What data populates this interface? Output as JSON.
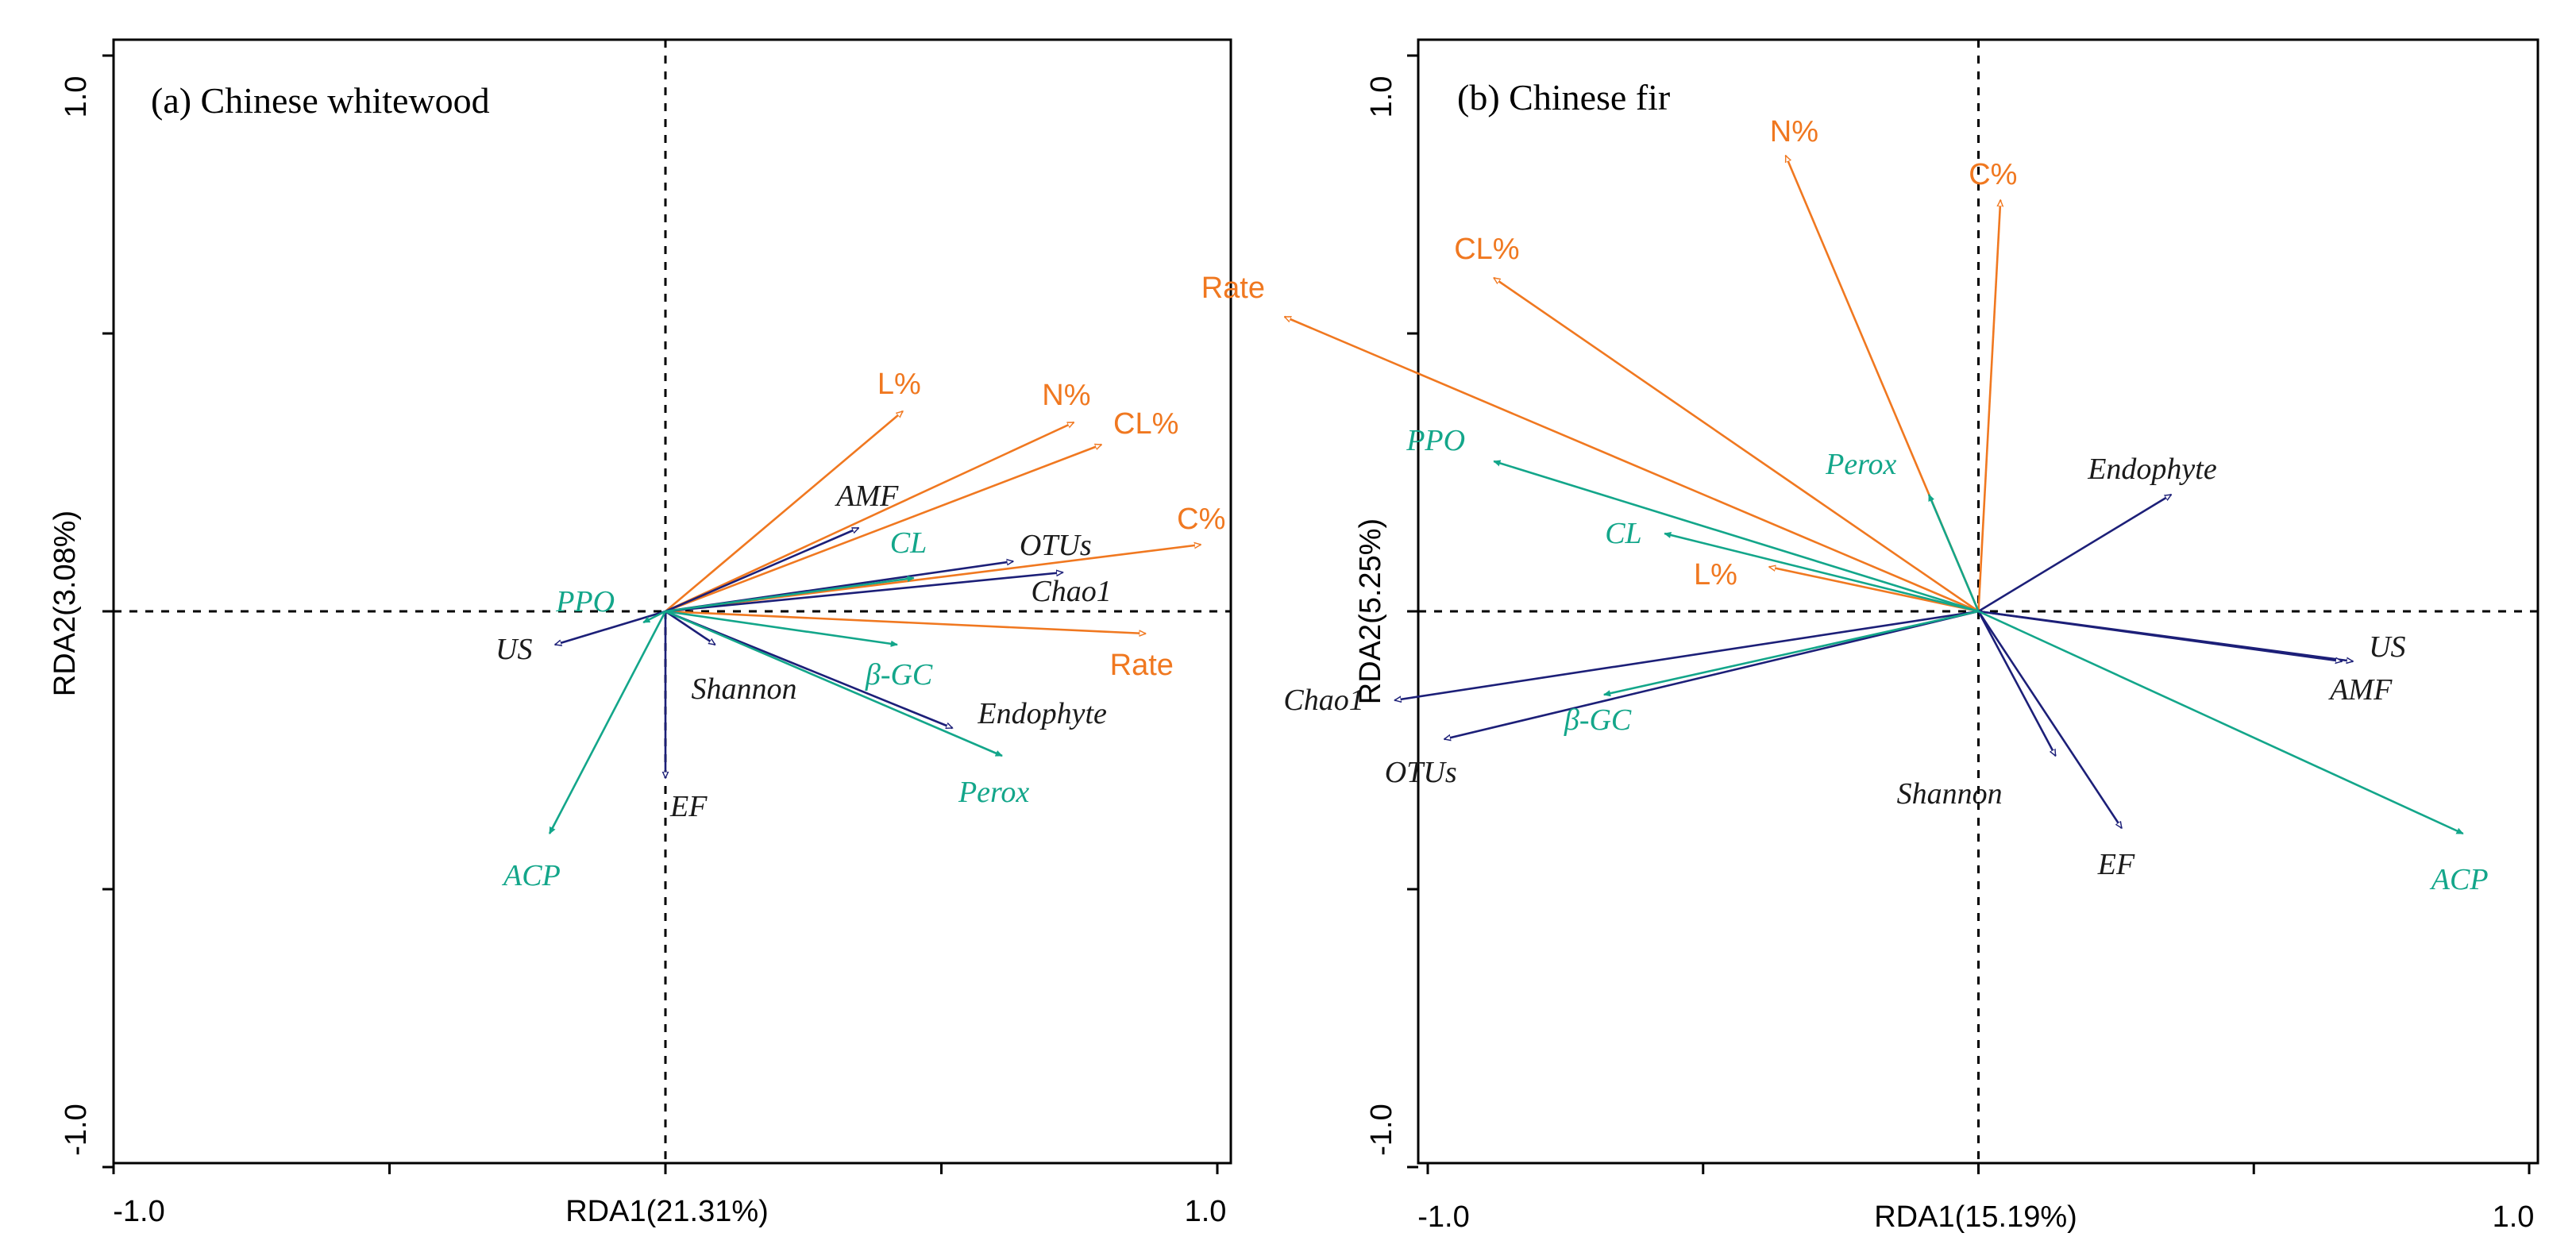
{
  "colors": {
    "orange": "#f07820",
    "green": "#13a68a",
    "navy": "#1c1f78",
    "frame": "#000000"
  },
  "chart_data": [
    {
      "type": "scatter",
      "subtype": "rda-biplot",
      "title": "(a) Chinese whitewood",
      "xlabel": "RDA1(21.31%)",
      "ylabel": "RDA2(3.08%)",
      "xlim": [
        -1.0,
        1.0
      ],
      "ylim": [
        -1.0,
        1.0
      ],
      "xticks": [
        "-1.0",
        "1.0"
      ],
      "yticks": [
        "1.0",
        "-1.0"
      ],
      "zero_lines": "dashed",
      "vectors": [
        {
          "label": "L%",
          "x": 0.43,
          "y": 0.36,
          "group": "litter",
          "head": "open"
        },
        {
          "label": "N%",
          "x": 0.74,
          "y": 0.34,
          "group": "litter",
          "head": "open"
        },
        {
          "label": "CL%",
          "x": 0.79,
          "y": 0.3,
          "group": "litter",
          "head": "open"
        },
        {
          "label": "C%",
          "x": 0.97,
          "y": 0.12,
          "group": "litter",
          "head": "open"
        },
        {
          "label": "Rate",
          "x": 0.87,
          "y": -0.04,
          "group": "litter",
          "head": "open"
        },
        {
          "label": "AMF",
          "x": 0.35,
          "y": 0.15,
          "group": "fungi",
          "head": "open"
        },
        {
          "label": "OTUs",
          "x": 0.63,
          "y": 0.09,
          "group": "fungi",
          "head": "open"
        },
        {
          "label": "Chao1",
          "x": 0.72,
          "y": 0.07,
          "group": "fungi",
          "head": "open"
        },
        {
          "label": "Shannon",
          "x": 0.09,
          "y": -0.06,
          "group": "fungi",
          "head": "open"
        },
        {
          "label": "Endophyte",
          "x": 0.52,
          "y": -0.21,
          "group": "fungi",
          "head": "open"
        },
        {
          "label": "EF",
          "x": 0.0,
          "y": -0.3,
          "group": "fungi",
          "head": "open"
        },
        {
          "label": "US",
          "x": -0.2,
          "y": -0.06,
          "group": "fungi",
          "head": "open"
        },
        {
          "label": "CL",
          "x": 0.45,
          "y": 0.06,
          "group": "enzyme",
          "head": "filled"
        },
        {
          "label": "β-GC",
          "x": 0.42,
          "y": -0.06,
          "group": "enzyme",
          "head": "filled"
        },
        {
          "label": "Perox",
          "x": 0.61,
          "y": -0.26,
          "group": "enzyme",
          "head": "filled"
        },
        {
          "label": "PPO",
          "x": -0.04,
          "y": -0.02,
          "group": "enzyme",
          "head": "filled"
        },
        {
          "label": "ACP",
          "x": -0.21,
          "y": -0.4,
          "group": "enzyme",
          "head": "filled"
        }
      ]
    },
    {
      "type": "scatter",
      "subtype": "rda-biplot",
      "title": "(b) Chinese fir",
      "xlabel": "RDA1(15.19%)",
      "ylabel": "RDA2(5.25%)",
      "xlim": [
        -1.0,
        1.0
      ],
      "ylim": [
        -1.0,
        1.0
      ],
      "xticks": [
        "-1.0",
        "1.0"
      ],
      "yticks": [
        "1.0",
        "-1.0"
      ],
      "zero_lines": "dashed",
      "vectors": [
        {
          "label": "N%",
          "x": -0.35,
          "y": 0.82,
          "group": "litter",
          "head": "open"
        },
        {
          "label": "C%",
          "x": 0.04,
          "y": 0.74,
          "group": "litter",
          "head": "open"
        },
        {
          "label": "CL%",
          "x": -0.88,
          "y": 0.6,
          "group": "litter",
          "head": "open"
        },
        {
          "label": "Rate",
          "x": -1.26,
          "y": 0.53,
          "group": "litter",
          "head": "open"
        },
        {
          "label": "L%",
          "x": -0.38,
          "y": 0.08,
          "group": "litter",
          "head": "open"
        },
        {
          "label": "Endophyte",
          "x": 0.35,
          "y": 0.21,
          "group": "fungi",
          "head": "open"
        },
        {
          "label": "US",
          "x": 0.68,
          "y": -0.09,
          "group": "fungi",
          "head": "open"
        },
        {
          "label": "AMF",
          "x": 0.66,
          "y": -0.09,
          "group": "fungi",
          "head": "open"
        },
        {
          "label": "Chao1",
          "x": -1.06,
          "y": -0.16,
          "group": "fungi",
          "head": "open"
        },
        {
          "label": "OTUs",
          "x": -0.97,
          "y": -0.23,
          "group": "fungi",
          "head": "open"
        },
        {
          "label": "Shannon",
          "x": 0.14,
          "y": -0.26,
          "group": "fungi",
          "head": "open"
        },
        {
          "label": "EF",
          "x": 0.26,
          "y": -0.39,
          "group": "fungi",
          "head": "open"
        },
        {
          "label": "PPO",
          "x": -0.88,
          "y": 0.27,
          "group": "enzyme",
          "head": "filled"
        },
        {
          "label": "Perox",
          "x": -0.09,
          "y": 0.21,
          "group": "enzyme",
          "head": "filled"
        },
        {
          "label": "CL",
          "x": -0.57,
          "y": 0.14,
          "group": "enzyme",
          "head": "filled"
        },
        {
          "label": "β-GC",
          "x": -0.68,
          "y": -0.15,
          "group": "enzyme",
          "head": "filled"
        },
        {
          "label": "ACP",
          "x": 0.88,
          "y": -0.4,
          "group": "enzyme",
          "head": "filled"
        }
      ]
    }
  ]
}
